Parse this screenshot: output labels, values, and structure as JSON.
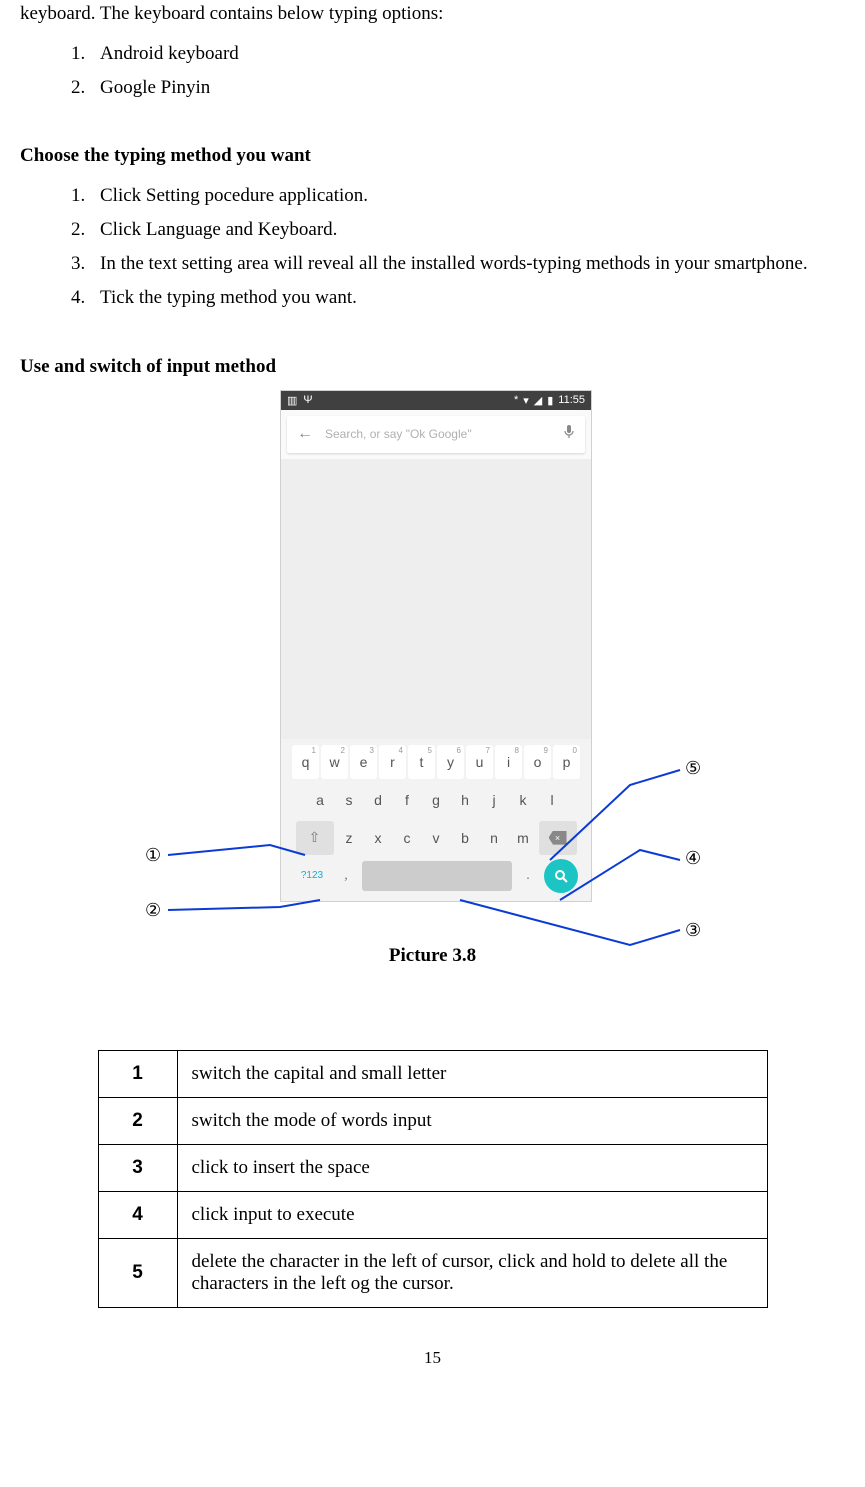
{
  "intro": "keyboard. The keyboard contains below typing options:",
  "typing_options": [
    "Android keyboard",
    "Google Pinyin"
  ],
  "heading_choose": "Choose the typing method you want",
  "choose_steps": [
    "Click Setting pocedure application.",
    "Click Language and Keyboard.",
    "In the text setting area will reveal all the installed words-typing methods in your smartphone.",
    "Tick the typing method you want."
  ],
  "heading_use": "Use and switch of input method",
  "figure_caption": "Picture 3.8",
  "status_bar": {
    "time": "11:55",
    "bt_icon": "*",
    "wifi_icon": "▾",
    "battery_icon": "▮"
  },
  "search": {
    "placeholder": "Search, or say \"Ok Google\"",
    "back_glyph": "←",
    "mic_glyph": "🎤"
  },
  "keyboard": {
    "row1": [
      {
        "k": "q",
        "s": "1"
      },
      {
        "k": "w",
        "s": "2"
      },
      {
        "k": "e",
        "s": "3"
      },
      {
        "k": "r",
        "s": "4"
      },
      {
        "k": "t",
        "s": "5"
      },
      {
        "k": "y",
        "s": "6"
      },
      {
        "k": "u",
        "s": "7"
      },
      {
        "k": "i",
        "s": "8"
      },
      {
        "k": "o",
        "s": "9"
      },
      {
        "k": "p",
        "s": "0"
      }
    ],
    "row2": [
      "a",
      "s",
      "d",
      "f",
      "g",
      "h",
      "j",
      "k",
      "l"
    ],
    "row3": [
      "z",
      "x",
      "c",
      "v",
      "b",
      "n",
      "m"
    ],
    "shift_glyph": "⇧",
    "backspace_glyph": "×",
    "mode_label": "?123",
    "comma": ",",
    "dot": ".",
    "search_glyph": "⚲"
  },
  "callouts": {
    "c1": "①",
    "c2": "②",
    "c3": "③",
    "c4": "④",
    "c5": "⑤"
  },
  "line_color": "#0b3bd6",
  "table": {
    "rows": [
      {
        "n": "1",
        "d": "switch the capital and small letter"
      },
      {
        "n": "2",
        "d": "switch the mode of words input"
      },
      {
        "n": "3",
        "d": "click to insert the space"
      },
      {
        "n": "4",
        "d": "click input to execute"
      },
      {
        "n": "5",
        "d": "delete the character in the left of cursor, click and hold to delete all the characters in the left og the cursor."
      }
    ]
  },
  "page_number": "15"
}
